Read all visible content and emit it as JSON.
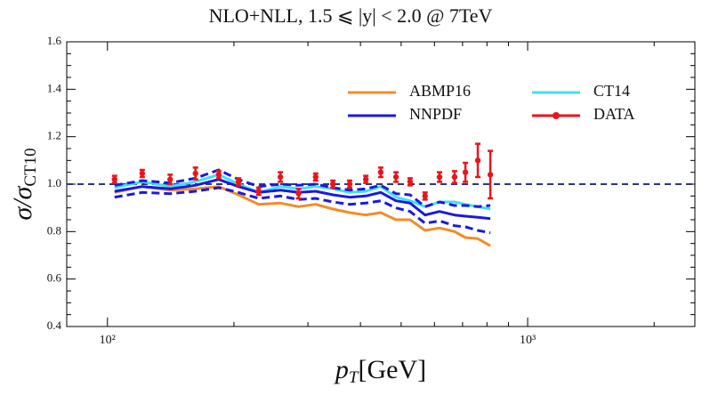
{
  "chart_data": {
    "type": "line",
    "title": "NLO+NLL, 1.5 ⩽ |y| < 2.0 @ 7TeV",
    "xlabel": {
      "main": "p",
      "sub": "T",
      "unit": "[GeV]"
    },
    "ylabel": {
      "main": "σ/σ",
      "sub": "CT10"
    },
    "xscale": "log",
    "xlim": [
      80,
      2500
    ],
    "ylim": [
      0.4,
      1.6
    ],
    "xticks": [
      {
        "value": 100,
        "label": "10²"
      },
      {
        "value": 1000,
        "label": "10³"
      }
    ],
    "xminorticks": [
      200,
      300,
      400,
      500,
      600,
      700,
      800,
      900,
      2000
    ],
    "yticks": [
      0.4,
      0.6,
      0.8,
      {
        "value": 1,
        "label": "1.0"
      },
      1.2,
      1.4,
      1.6
    ],
    "yminorticks": [
      0.45,
      0.5,
      0.55,
      0.65,
      0.7,
      0.75,
      0.85,
      0.9,
      0.95,
      1.05,
      1.1,
      1.15,
      1.25,
      1.3,
      1.35,
      1.45,
      1.5,
      1.55
    ],
    "hline": 1,
    "hline_color": "#2e3580",
    "legend": "upper right",
    "x": [
      104,
      121,
      141,
      162,
      184,
      205,
      229,
      258,
      285,
      313,
      344,
      377,
      412,
      447,
      486,
      525,
      570,
      617,
      670,
      711,
      761,
      815
    ],
    "series": [
      {
        "name": "ABMP16",
        "color": "#f28c28",
        "values": [
          0.965,
          0.99,
          0.975,
          0.98,
          0.99,
          0.955,
          0.915,
          0.92,
          0.905,
          0.915,
          0.895,
          0.88,
          0.87,
          0.88,
          0.85,
          0.85,
          0.805,
          0.815,
          0.8,
          0.775,
          0.77,
          0.74
        ]
      },
      {
        "name": "CT14",
        "color": "#3fe0f0",
        "values": [
          0.985,
          1.01,
          0.99,
          1.01,
          1.04,
          1.0,
          0.965,
          0.99,
          0.98,
          0.99,
          0.98,
          0.965,
          0.97,
          0.99,
          0.945,
          0.93,
          0.905,
          0.925,
          0.925,
          0.915,
          0.905,
          0.895
        ]
      },
      {
        "name": "NNPDF",
        "color": "#1a1adb",
        "values": [
          0.97,
          0.99,
          0.98,
          0.995,
          1.02,
          0.99,
          0.965,
          0.975,
          0.965,
          0.97,
          0.955,
          0.945,
          0.95,
          0.965,
          0.93,
          0.92,
          0.87,
          0.885,
          0.87,
          0.865,
          0.86,
          0.855
        ],
        "band_upper": [
          0.995,
          1.015,
          1.005,
          1.025,
          1.06,
          1.02,
          0.99,
          1.0,
          0.995,
          1.0,
          0.985,
          0.975,
          0.98,
          0.995,
          0.96,
          0.955,
          0.905,
          0.925,
          0.91,
          0.91,
          0.905,
          0.91
        ],
        "band_lower": [
          0.945,
          0.965,
          0.96,
          0.97,
          0.985,
          0.965,
          0.94,
          0.95,
          0.935,
          0.94,
          0.925,
          0.915,
          0.92,
          0.93,
          0.9,
          0.885,
          0.835,
          0.845,
          0.825,
          0.82,
          0.805,
          0.795
        ]
      },
      {
        "name": "DATA",
        "color": "#e8151b",
        "values": [
          1.02,
          1.045,
          1.02,
          1.045,
          1.04,
          1.01,
          0.97,
          1.03,
          0.96,
          1.03,
          1.0,
          1.0,
          1.02,
          1.05,
          1.03,
          1.01,
          0.95,
          1.03,
          1.03,
          1.05,
          1.1,
          1.04
        ],
        "errors": [
          0.015,
          0.015,
          0.02,
          0.025,
          0.015,
          0.015,
          0.015,
          0.02,
          0.02,
          0.015,
          0.015,
          0.015,
          0.015,
          0.02,
          0.02,
          0.015,
          0.015,
          0.02,
          0.025,
          0.04,
          0.07,
          0.1
        ]
      }
    ]
  }
}
